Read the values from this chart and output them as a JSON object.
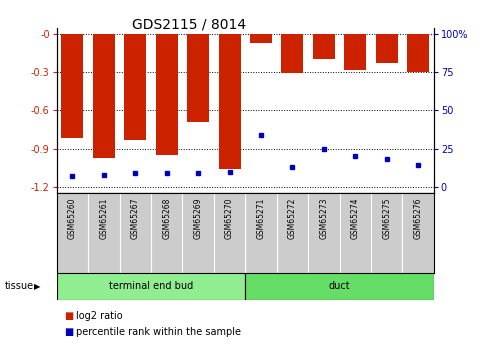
{
  "title": "GDS2115 / 8014",
  "samples": [
    "GSM65260",
    "GSM65261",
    "GSM65267",
    "GSM65268",
    "GSM65269",
    "GSM65270",
    "GSM65271",
    "GSM65272",
    "GSM65273",
    "GSM65274",
    "GSM65275",
    "GSM65276"
  ],
  "log2_ratio": [
    -0.82,
    -0.97,
    -0.83,
    -0.95,
    -0.69,
    -1.06,
    -0.07,
    -0.31,
    -0.2,
    -0.28,
    -0.23,
    -0.3
  ],
  "percentile_rank": [
    7,
    8,
    9,
    9,
    9,
    10,
    34,
    13,
    25,
    20,
    18,
    14
  ],
  "ylim_left": [
    -1.25,
    0.05
  ],
  "ylim_right": [
    -1.5625,
    106.25
  ],
  "yticks_left": [
    -1.2,
    -0.9,
    -0.6,
    -0.3,
    0.0
  ],
  "ytick_labels_left": [
    "-1.2",
    "-0.9",
    "-0.6",
    "-0.3",
    "-0"
  ],
  "yticks_right": [
    0,
    25,
    50,
    75,
    100
  ],
  "ytick_labels_right": [
    "0",
    "25",
    "50",
    "75",
    "100%"
  ],
  "groups": [
    {
      "label": "terminal end bud",
      "start": 0,
      "end": 6,
      "color": "#90EE90"
    },
    {
      "label": "duct",
      "start": 6,
      "end": 12,
      "color": "#66DD66"
    }
  ],
  "bar_color_red": "#CC2200",
  "bar_color_blue": "#0000BB",
  "plot_bg": "#FFFFFF",
  "tick_color_left": "#CC2200",
  "tick_color_right": "#0000BB",
  "grid_color": "#000000",
  "sample_box_color": "#CCCCCC",
  "title_fontsize": 10,
  "tick_fontsize": 7,
  "sample_fontsize": 5.5,
  "legend_fontsize": 7,
  "tissue_fontsize": 7,
  "bar_width": 0.7,
  "tissue_label": "tissue"
}
